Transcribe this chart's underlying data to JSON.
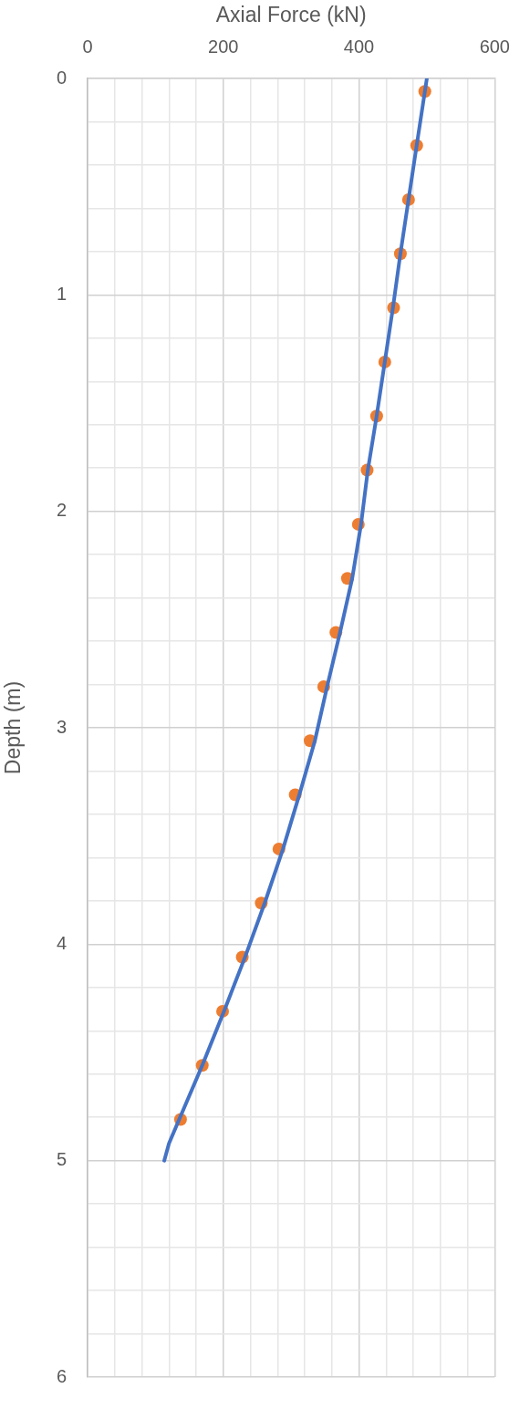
{
  "chart_data": {
    "type": "scatter",
    "xlabel": "Axial Force (kN)",
    "ylabel": "Depth (m)",
    "xlim": [
      0,
      600
    ],
    "xticks": [
      0,
      {
        "value": 40,
        "label": null
      },
      {
        "value": 80,
        "label": null
      },
      {
        "value": 120,
        "label": null
      },
      {
        "value": 160,
        "label": null
      },
      200,
      {
        "value": 240,
        "label": null
      },
      {
        "value": 280,
        "label": null
      },
      {
        "value": 320,
        "label": null
      },
      {
        "value": 360,
        "label": null
      },
      400,
      {
        "value": 440,
        "label": null
      },
      {
        "value": 480,
        "label": null
      },
      {
        "value": 520,
        "label": null
      },
      {
        "value": 560,
        "label": null
      },
      600
    ],
    "ylim": [
      6,
      0
    ],
    "yticks": [
      0,
      {
        "value": 0.2,
        "label": null
      },
      {
        "value": 0.4,
        "label": null
      },
      {
        "value": 0.6,
        "label": null
      },
      {
        "value": 0.8,
        "label": null
      },
      1,
      {
        "value": 1.2,
        "label": null
      },
      {
        "value": 1.4,
        "label": null
      },
      {
        "value": 1.6,
        "label": null
      },
      {
        "value": 1.8,
        "label": null
      },
      2,
      {
        "value": 2.2,
        "label": null
      },
      {
        "value": 2.4,
        "label": null
      },
      {
        "value": 2.6,
        "label": null
      },
      {
        "value": 2.8,
        "label": null
      },
      3,
      {
        "value": 3.2,
        "label": null
      },
      {
        "value": 3.4,
        "label": null
      },
      {
        "value": 3.6,
        "label": null
      },
      {
        "value": 3.8,
        "label": null
      },
      4,
      {
        "value": 4.2,
        "label": null
      },
      {
        "value": 4.4,
        "label": null
      },
      {
        "value": 4.6,
        "label": null
      },
      {
        "value": 4.8,
        "label": null
      },
      5,
      {
        "value": 5.2,
        "label": null
      },
      {
        "value": 5.4,
        "label": null
      },
      {
        "value": 5.6,
        "label": null
      },
      {
        "value": 5.8,
        "label": null
      },
      6
    ],
    "grid": true,
    "legend": false,
    "series": [
      {
        "type": "line",
        "color": "#4472c4",
        "marker": "none",
        "line_style": "solid",
        "x": [
          500,
          485,
          473,
          461,
          450,
          438,
          426,
          413,
          403,
          390,
          372,
          353,
          335,
          312,
          288,
          261,
          232,
          201,
          169,
          135,
          120,
          113
        ],
        "values": [
          0,
          0.31,
          0.56,
          0.81,
          1.06,
          1.31,
          1.56,
          1.81,
          2.06,
          2.31,
          2.56,
          2.81,
          3.06,
          3.31,
          3.56,
          3.81,
          4.06,
          4.31,
          4.56,
          4.81,
          4.92,
          5
        ]
      },
      {
        "type": "scatter",
        "color": "#ed7d31",
        "marker": "circle",
        "x": [
          497,
          485,
          473,
          461,
          451,
          438,
          426,
          412,
          399,
          383,
          366,
          348,
          328,
          306,
          282,
          256,
          228,
          199,
          169,
          137
        ],
        "values": [
          0.06,
          0.31,
          0.56,
          0.81,
          1.06,
          1.31,
          1.56,
          1.81,
          2.06,
          2.31,
          2.56,
          2.81,
          3.06,
          3.31,
          3.56,
          3.81,
          4.06,
          4.31,
          4.56,
          4.81
        ]
      }
    ]
  }
}
